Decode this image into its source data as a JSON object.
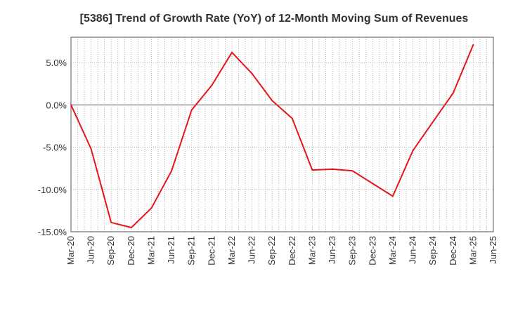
{
  "chart_data": {
    "type": "line",
    "title": "[5386]  Trend of Growth Rate (YoY) of 12-Month Moving Sum of Revenues",
    "xlabel": "",
    "ylabel": "",
    "ylim": [
      -15,
      8
    ],
    "yticks": [
      5,
      0,
      -5,
      -10,
      -15
    ],
    "ytick_labels": [
      "5.0%",
      "0.0%",
      "-5.0%",
      "-10.0%",
      "-15.0%"
    ],
    "categories": [
      "Mar-20",
      "Jun-20",
      "Sep-20",
      "Dec-20",
      "Mar-21",
      "Jun-21",
      "Sep-21",
      "Dec-21",
      "Mar-22",
      "Jun-22",
      "Sep-22",
      "Dec-22",
      "Mar-23",
      "Jun-23",
      "Sep-23",
      "Dec-23",
      "Mar-24",
      "Jun-24",
      "Sep-24",
      "Dec-24",
      "Mar-25",
      "Jun-25"
    ],
    "series": [
      {
        "color": "#e8141b",
        "values": [
          0.0,
          -5.2,
          -13.9,
          -14.5,
          -12.2,
          -7.8,
          -0.6,
          2.3,
          6.2,
          3.7,
          0.5,
          -1.6,
          -7.7,
          -7.6,
          -7.8,
          -9.3,
          -10.8,
          -5.4,
          -2.0,
          1.4,
          7.1,
          null
        ]
      }
    ],
    "grid": true,
    "grid_style": "dotted",
    "zero_line": true
  }
}
